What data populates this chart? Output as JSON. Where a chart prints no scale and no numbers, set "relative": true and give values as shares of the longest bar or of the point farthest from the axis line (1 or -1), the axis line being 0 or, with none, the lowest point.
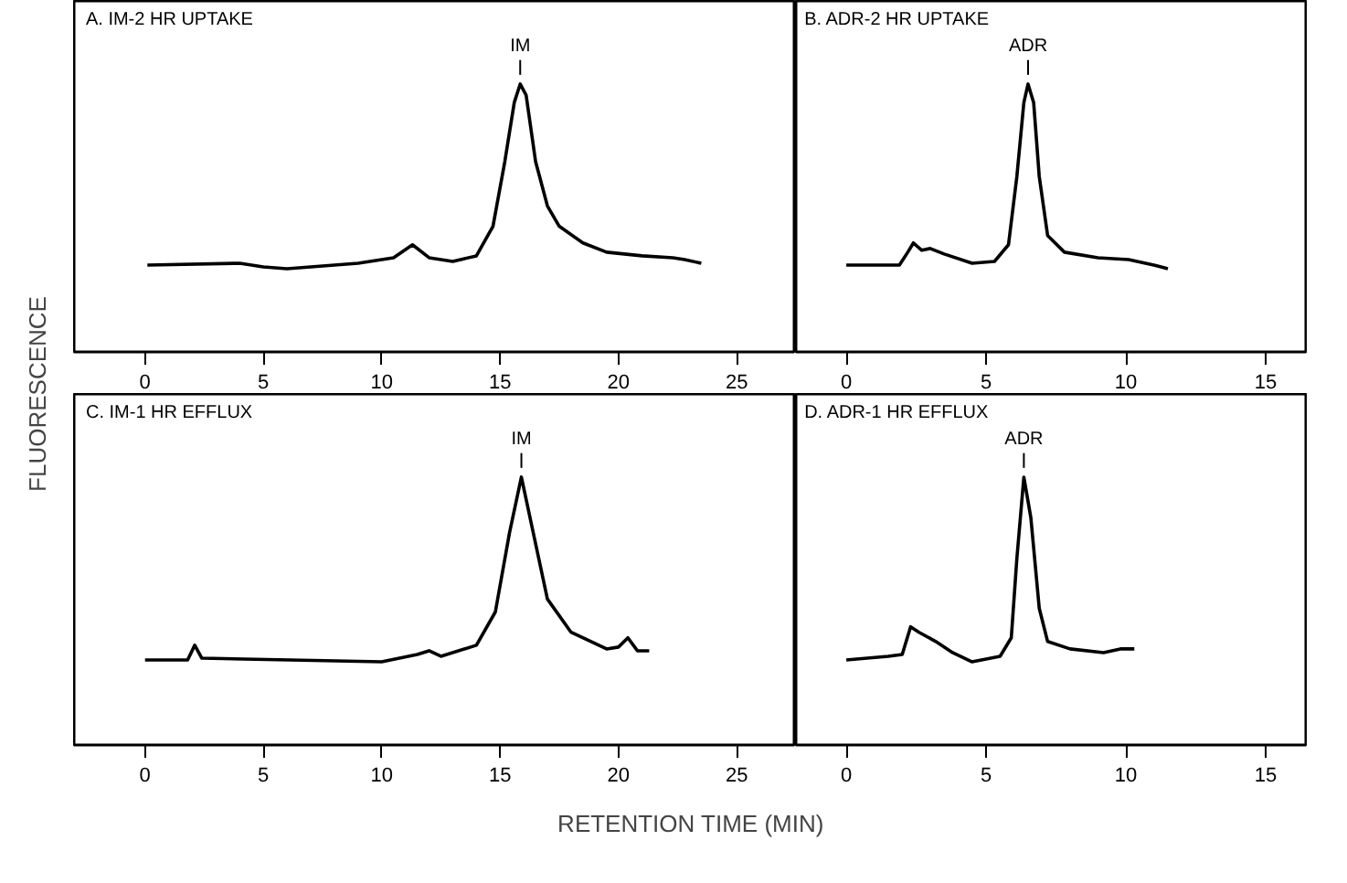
{
  "chart_data": [
    {
      "type": "line",
      "relative": true,
      "title": "A. IM-2 HR UPTAKE",
      "ylabel": "FLUORESCENCE",
      "xlim": [
        0,
        25
      ],
      "xticks": [
        0,
        5,
        10,
        15,
        20,
        25
      ],
      "tick_labels": "x",
      "series": [
        {
          "color": "#000000",
          "x": [
            0.1,
            4,
            5,
            6,
            9,
            10.5,
            11.3,
            12,
            13,
            14,
            14.7,
            15.2,
            15.6,
            15.85,
            16.1,
            16.5,
            17,
            17.5,
            18.5,
            19.5,
            21,
            22.3,
            22.8,
            23.5
          ],
          "values": [
            0.02,
            0.03,
            0.01,
            0,
            0.03,
            0.06,
            0.13,
            0.06,
            0.04,
            0.07,
            0.23,
            0.58,
            0.9,
            1,
            0.94,
            0.58,
            0.34,
            0.23,
            0.14,
            0.09,
            0.07,
            0.06,
            0.05,
            0.03
          ]
        }
      ],
      "annotations": [
        {
          "text": "IM",
          "x": 15.85,
          "y": 1
        }
      ]
    },
    {
      "type": "line",
      "relative": true,
      "title": "B. ADR-2 HR UPTAKE",
      "xlim": [
        0,
        15
      ],
      "xticks": [
        0,
        5,
        10,
        15
      ],
      "tick_labels": "x",
      "series": [
        {
          "color": "#000000",
          "x": [
            0,
            1.9,
            2.2,
            2.4,
            2.7,
            3,
            3.5,
            4.5,
            5.3,
            5.8,
            6.1,
            6.35,
            6.5,
            6.7,
            6.9,
            7.2,
            7.8,
            9,
            10.1,
            11,
            11.5
          ],
          "values": [
            0.02,
            0.02,
            0.09,
            0.14,
            0.1,
            0.11,
            0.08,
            0.03,
            0.04,
            0.13,
            0.5,
            0.9,
            1,
            0.9,
            0.5,
            0.18,
            0.09,
            0.06,
            0.05,
            0.02,
            0
          ]
        }
      ],
      "annotations": [
        {
          "text": "ADR",
          "x": 6.5,
          "y": 1
        }
      ]
    },
    {
      "type": "line",
      "relative": true,
      "title": "C. IM-1 HR EFFLUX",
      "xlabel": "RETENTION TIME (MIN)",
      "xlim": [
        0,
        25
      ],
      "xticks": [
        0,
        5,
        10,
        15,
        20,
        25
      ],
      "tick_labels": "x",
      "series": [
        {
          "color": "#000000",
          "x": [
            0,
            1.8,
            2.1,
            2.4,
            10,
            11.5,
            12,
            12.5,
            14,
            14.8,
            15.4,
            15.9,
            16.4,
            17,
            18,
            19.5,
            20,
            20.4,
            20.8,
            21.3
          ],
          "values": [
            0.01,
            0.01,
            0.09,
            0.02,
            0,
            0.04,
            0.06,
            0.03,
            0.09,
            0.27,
            0.7,
            1,
            0.7,
            0.34,
            0.16,
            0.07,
            0.08,
            0.13,
            0.06,
            0.06
          ]
        }
      ],
      "annotations": [
        {
          "text": "IM",
          "x": 15.9,
          "y": 1
        }
      ]
    },
    {
      "type": "line",
      "relative": true,
      "title": "D. ADR-1 HR EFFLUX",
      "xlim": [
        0,
        15
      ],
      "xticks": [
        0,
        5,
        10,
        15
      ],
      "tick_labels": "x",
      "series": [
        {
          "color": "#000000",
          "x": [
            0,
            1.5,
            2,
            2.3,
            2.6,
            3.2,
            3.8,
            4.5,
            5.5,
            5.9,
            6.1,
            6.35,
            6.6,
            6.9,
            7.2,
            8,
            9.2,
            9.8,
            10.3
          ],
          "values": [
            0.01,
            0.03,
            0.04,
            0.19,
            0.16,
            0.11,
            0.05,
            0,
            0.03,
            0.13,
            0.56,
            1,
            0.78,
            0.29,
            0.11,
            0.07,
            0.05,
            0.07,
            0.07
          ]
        }
      ],
      "annotations": [
        {
          "text": "ADR",
          "x": 6.35,
          "y": 1
        }
      ]
    }
  ]
}
